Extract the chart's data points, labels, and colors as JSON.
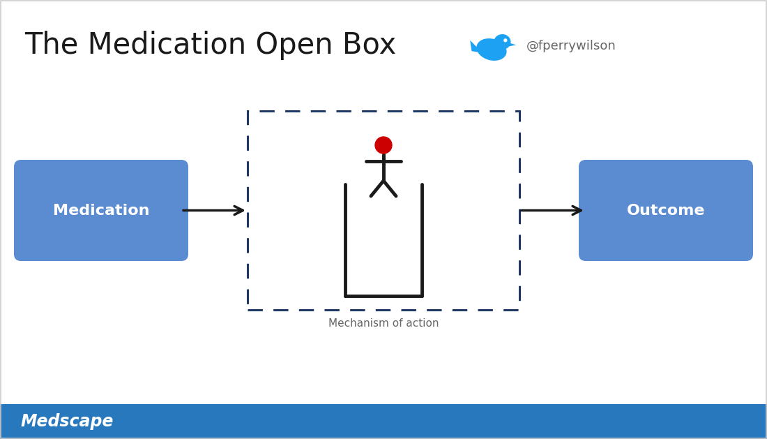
{
  "title": "The Medication Open Box",
  "twitter_handle": "@fperrywilson",
  "twitter_color": "#1DA1F2",
  "slide_bg": "#ffffff",
  "box_color": "#5b8bd0",
  "box_text_color": "#ffffff",
  "dashed_box_color": "#1F3864",
  "mechanism_label": "Mechanism of action",
  "left_box_label": "Medication",
  "right_box_label": "Outcome",
  "arrow_color": "#1a1a1a",
  "figure_color": "#1a1a1a",
  "head_color": "#cc0000",
  "medscape_bg": "#2878be",
  "medscape_text": "Medscape",
  "medscape_text_color": "#ffffff",
  "gray_text_color": "#666666"
}
